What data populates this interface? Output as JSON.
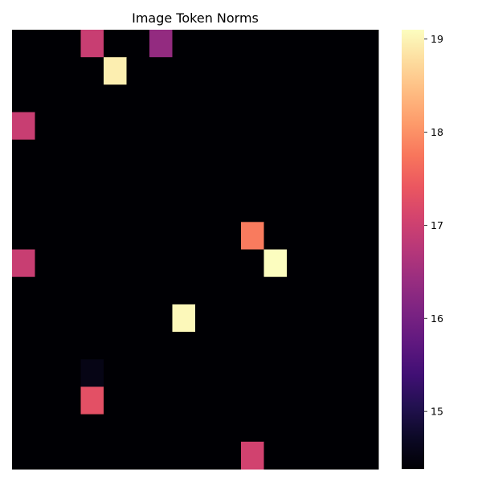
{
  "chart_data": {
    "type": "heatmap",
    "title": "Image Token Norms",
    "xlabel": "",
    "ylabel": "",
    "rows": 16,
    "cols": 16,
    "colormap": "magma",
    "vmin": 14.38,
    "vmax": 19.1,
    "baseline_value": 14.38,
    "cells": [
      {
        "row": 0,
        "col": 3,
        "value": 16.95
      },
      {
        "row": 0,
        "col": 6,
        "value": 16.35
      },
      {
        "row": 1,
        "col": 4,
        "value": 18.95
      },
      {
        "row": 3,
        "col": 0,
        "value": 16.95
      },
      {
        "row": 7,
        "col": 10,
        "value": 17.8
      },
      {
        "row": 8,
        "col": 0,
        "value": 16.95
      },
      {
        "row": 8,
        "col": 11,
        "value": 19.1
      },
      {
        "row": 10,
        "col": 7,
        "value": 19.05
      },
      {
        "row": 12,
        "col": 3,
        "value": 14.55
      },
      {
        "row": 13,
        "col": 3,
        "value": 17.3
      },
      {
        "row": 15,
        "col": 10,
        "value": 17.05
      }
    ],
    "colorbar": {
      "ticks": [
        15,
        16,
        17,
        18,
        19
      ],
      "tick_labels": [
        "15",
        "16",
        "17",
        "18",
        "19"
      ]
    },
    "grid": false,
    "axes_visible": false
  }
}
